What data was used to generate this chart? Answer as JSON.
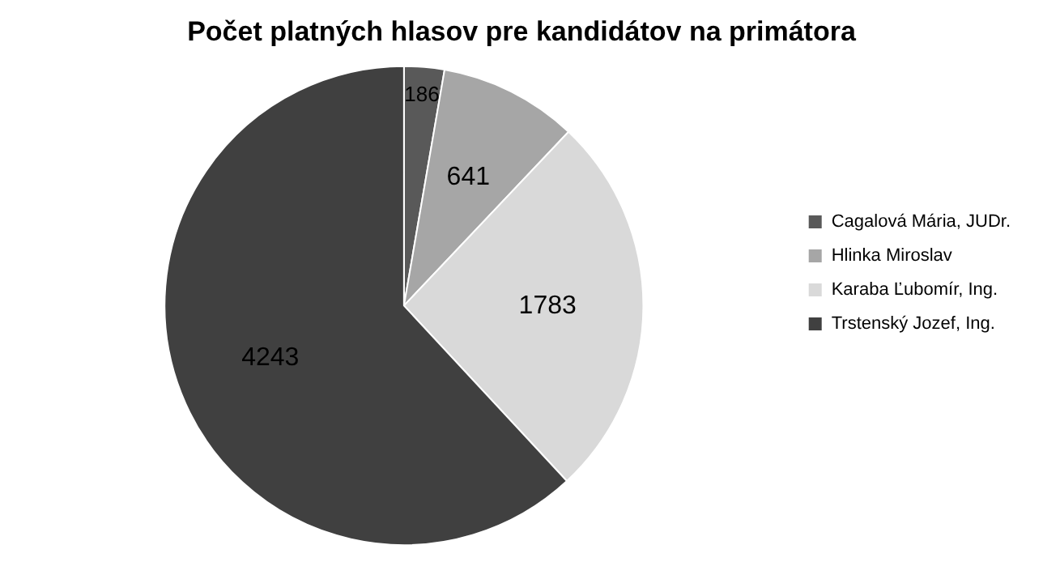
{
  "chart_data": {
    "type": "pie",
    "title": "Počet platných hlasov pre kandidátov na primátora",
    "categories": [
      "Cagalová Mária, JUDr.",
      "Hlinka Miroslav",
      "Karaba Ľubomír, Ing.",
      "Trstenský Jozef, Ing."
    ],
    "values": [
      186,
      641,
      1783,
      4243
    ],
    "colors": [
      "#595959",
      "#a6a6a6",
      "#d9d9d9",
      "#404040"
    ],
    "data_labels": true,
    "legend": "right"
  }
}
